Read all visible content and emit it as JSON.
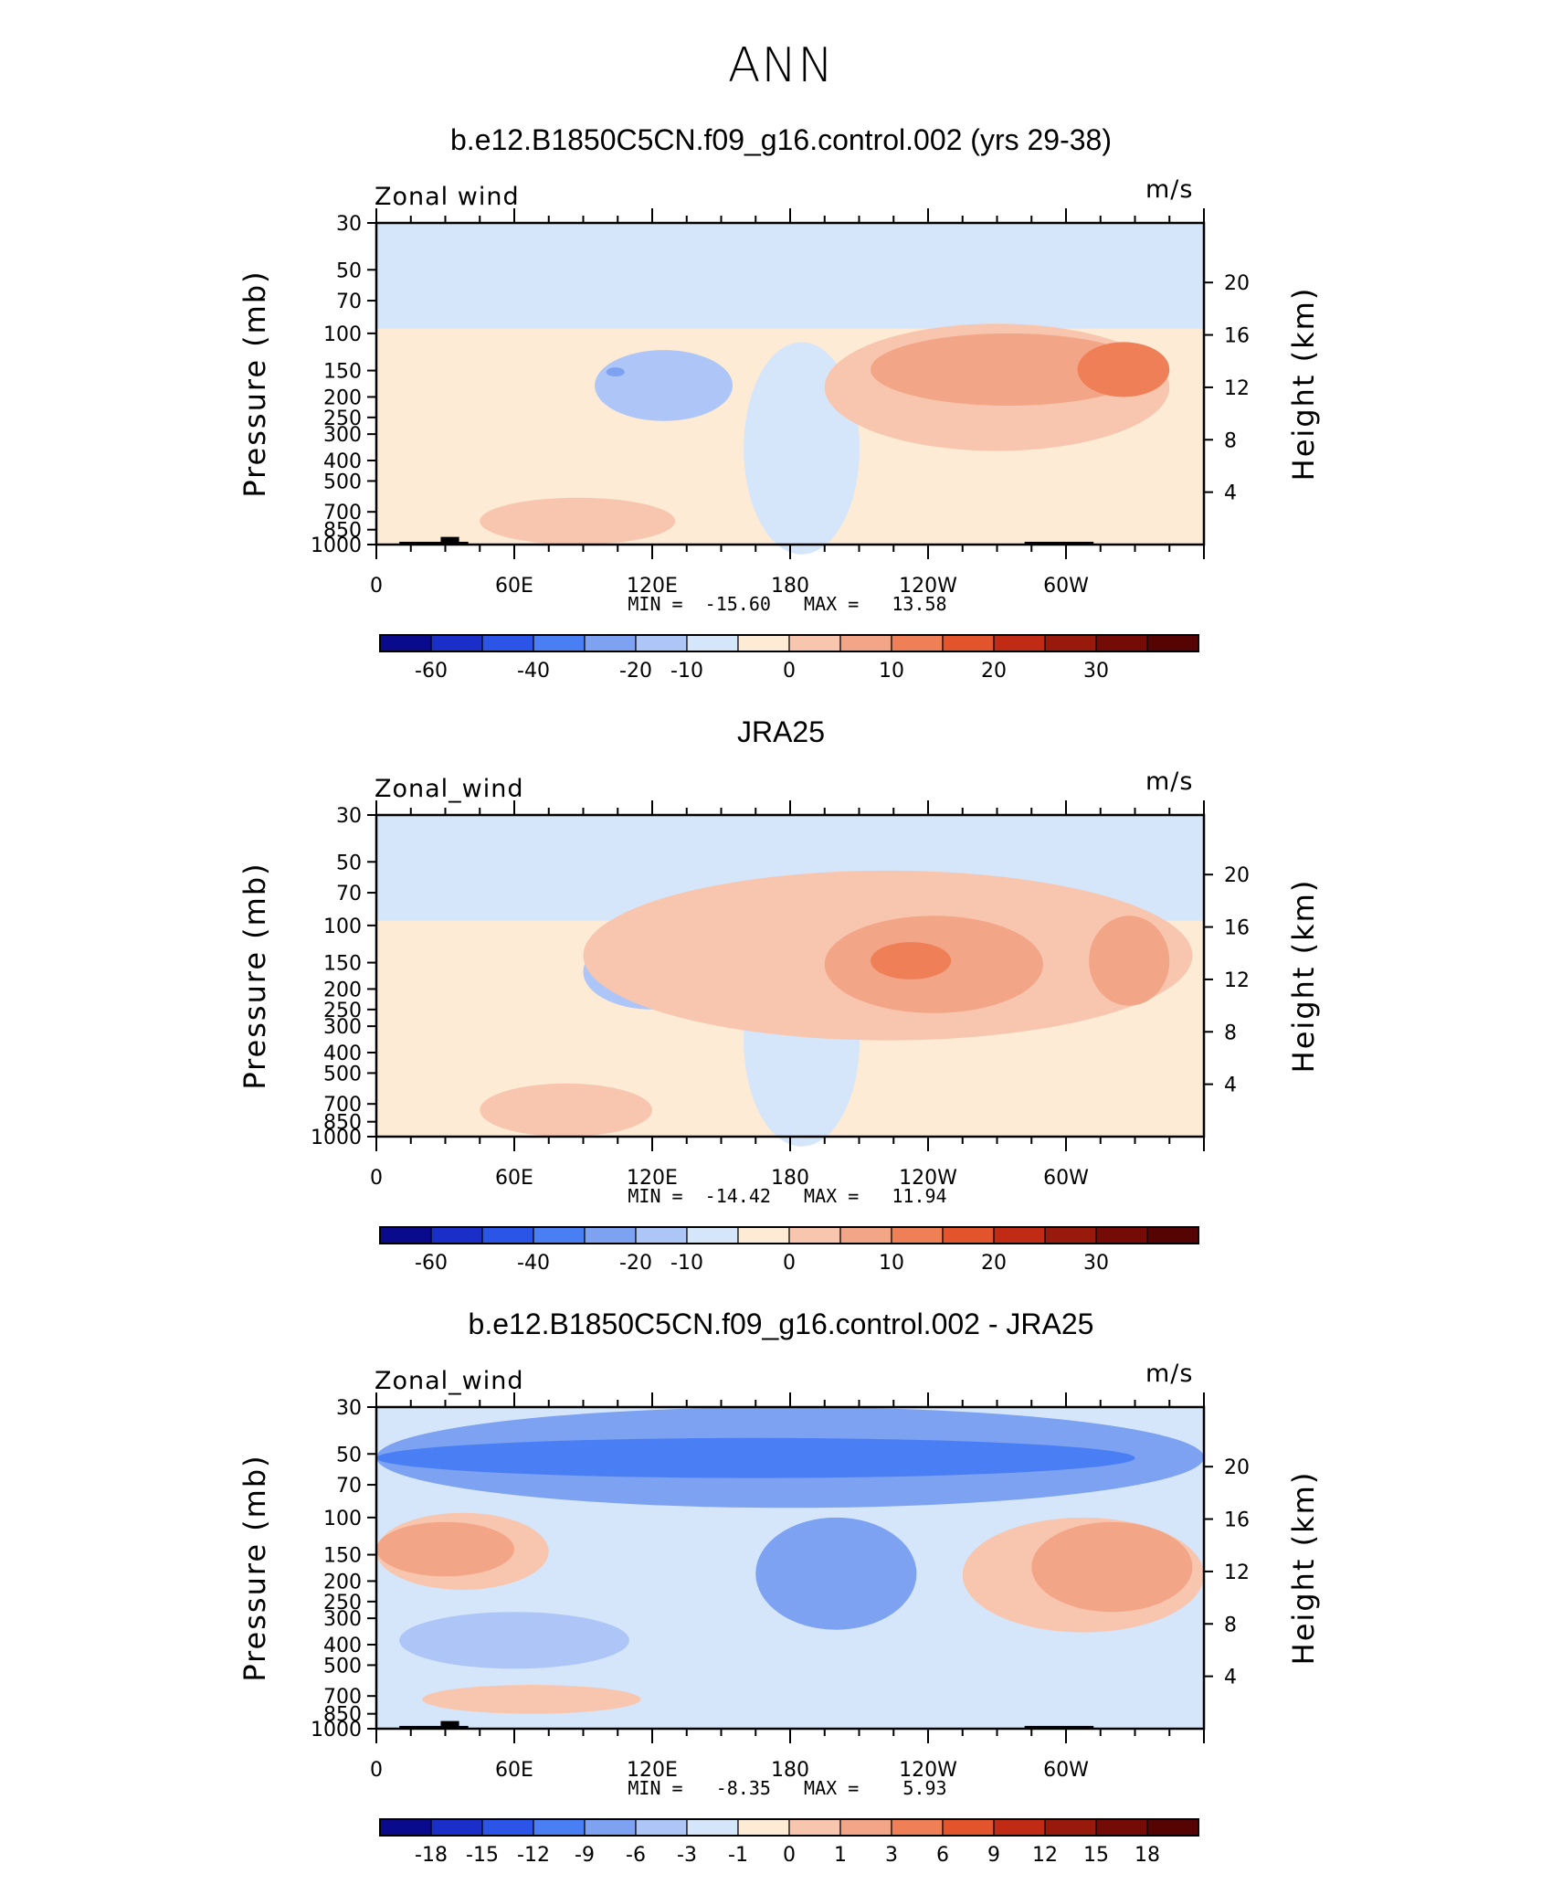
{
  "page_title": "ANN",
  "chart_data": [
    {
      "type": "heatmap",
      "title": "b.e12.B1850C5CN.f09_g16.control.002 (yrs 29-38)",
      "variable_label": "Zonal wind",
      "units": "m/s",
      "stats_text": "MIN =  -15.60   MAX =   13.58",
      "min": -15.6,
      "max": 13.58,
      "xlabel": "",
      "ylabel": "Pressure (mb)",
      "y2label": "Height (km)",
      "x_ticks": [
        "0",
        "60E",
        "120E",
        "180",
        "120W",
        "60W"
      ],
      "y_ticks": [
        "30",
        "50",
        "70",
        "100",
        "150",
        "200",
        "250",
        "300",
        "400",
        "500",
        "700",
        "850",
        "1000"
      ],
      "y2_ticks": [
        "20",
        "16",
        "12",
        "8",
        "4"
      ],
      "colorbar_labels": [
        "-60",
        "-40",
        "-20",
        "-10",
        "0",
        "10",
        "20",
        "30"
      ],
      "colorbar_colors": [
        "#0a0a8c",
        "#1a2fc8",
        "#2a55e6",
        "#4a7ef5",
        "#7ea2f2",
        "#aec6f7",
        "#d5e6fb",
        "#fdebd6",
        "#f8c6ae",
        "#f3a587",
        "#ef7f56",
        "#e3532c",
        "#c12a14",
        "#971a0c",
        "#750b06",
        "#560303"
      ],
      "regions": [
        {
          "level": "-10",
          "color": "#aec6f7",
          "lon": [
            95,
            155
          ],
          "p": [
            120,
            260
          ]
        },
        {
          "level": "-20",
          "color": "#7ea2f2",
          "lon": [
            100,
            108
          ],
          "p": [
            145,
            160
          ]
        },
        {
          "level": "5",
          "color": "#f8c6ae",
          "lon": [
            195,
            345
          ],
          "p": [
            90,
            360
          ]
        },
        {
          "level": "10",
          "color": "#f3a587",
          "lon": [
            215,
            335
          ],
          "p": [
            100,
            220
          ]
        },
        {
          "level": "20",
          "color": "#ef7f56",
          "lon": [
            305,
            345
          ],
          "p": [
            110,
            200
          ]
        },
        {
          "level": "5",
          "color": "#f8c6ae",
          "lon": [
            45,
            130
          ],
          "p": [
            600,
            1000
          ]
        }
      ],
      "topography": true
    },
    {
      "type": "heatmap",
      "title": "JRA25",
      "variable_label": "Zonal_wind",
      "units": "m/s",
      "stats_text": "MIN =  -14.42   MAX =   11.94",
      "min": -14.42,
      "max": 11.94,
      "xlabel": "",
      "ylabel": "Pressure (mb)",
      "y2label": "Height (km)",
      "x_ticks": [
        "0",
        "60E",
        "120E",
        "180",
        "120W",
        "60W"
      ],
      "y_ticks": [
        "30",
        "50",
        "70",
        "100",
        "150",
        "200",
        "250",
        "300",
        "400",
        "500",
        "700",
        "850",
        "1000"
      ],
      "y2_ticks": [
        "20",
        "16",
        "12",
        "8",
        "4"
      ],
      "colorbar_labels": [
        "-60",
        "-40",
        "-20",
        "-10",
        "0",
        "10",
        "20",
        "30"
      ],
      "colorbar_colors": [
        "#0a0a8c",
        "#1a2fc8",
        "#2a55e6",
        "#4a7ef5",
        "#7ea2f2",
        "#aec6f7",
        "#d5e6fb",
        "#fdebd6",
        "#f8c6ae",
        "#f3a587",
        "#ef7f56",
        "#e3532c",
        "#c12a14",
        "#971a0c",
        "#750b06",
        "#560303"
      ],
      "regions": [
        {
          "level": "-10",
          "color": "#aec6f7",
          "lon": [
            90,
            150
          ],
          "p": [
            110,
            250
          ]
        },
        {
          "level": "5",
          "color": "#f8c6ae",
          "lon": [
            90,
            355
          ],
          "p": [
            55,
            350
          ]
        },
        {
          "level": "10",
          "color": "#f3a587",
          "lon": [
            195,
            290
          ],
          "p": [
            90,
            260
          ]
        },
        {
          "level": "20",
          "color": "#ef7f56",
          "lon": [
            215,
            250
          ],
          "p": [
            120,
            180
          ]
        },
        {
          "level": "10",
          "color": "#f3a587",
          "lon": [
            310,
            345
          ],
          "p": [
            90,
            240
          ]
        },
        {
          "level": "5",
          "color": "#f8c6ae",
          "lon": [
            45,
            120
          ],
          "p": [
            560,
            1000
          ]
        }
      ],
      "topography": false
    },
    {
      "type": "heatmap",
      "title": "b.e12.B1850C5CN.f09_g16.control.002 - JRA25",
      "variable_label": "Zonal_wind",
      "units": "m/s",
      "stats_text": "MIN =   -8.35   MAX =    5.93",
      "min": -8.35,
      "max": 5.93,
      "xlabel": "",
      "ylabel": "Pressure (mb)",
      "y2label": "Height (km)",
      "x_ticks": [
        "0",
        "60E",
        "120E",
        "180",
        "120W",
        "60W"
      ],
      "y_ticks": [
        "30",
        "50",
        "70",
        "100",
        "150",
        "200",
        "250",
        "300",
        "400",
        "500",
        "700",
        "850",
        "1000"
      ],
      "y2_ticks": [
        "20",
        "16",
        "12",
        "8",
        "4"
      ],
      "colorbar_labels": [
        "-18",
        "-15",
        "-12",
        "-9",
        "-6",
        "-3",
        "-1",
        "0",
        "1",
        "3",
        "6",
        "9",
        "12",
        "15",
        "18"
      ],
      "colorbar_colors": [
        "#0a0a8c",
        "#1a2fc8",
        "#2a55e6",
        "#4a7ef5",
        "#7ea2f2",
        "#aec6f7",
        "#d5e6fb",
        "#fdebd6",
        "#f8c6ae",
        "#f3a587",
        "#ef7f56",
        "#e3532c",
        "#c12a14",
        "#971a0c",
        "#750b06",
        "#560303"
      ],
      "regions": [
        {
          "level": "-3",
          "color": "#7ea2f2",
          "lon": [
            0,
            360
          ],
          "p": [
            30,
            90
          ]
        },
        {
          "level": "-6",
          "color": "#4a7ef5",
          "lon": [
            0,
            330
          ],
          "p": [
            42,
            65
          ]
        },
        {
          "level": "1",
          "color": "#f8c6ae",
          "lon": [
            0,
            75
          ],
          "p": [
            95,
            220
          ]
        },
        {
          "level": "3",
          "color": "#f3a587",
          "lon": [
            0,
            60
          ],
          "p": [
            105,
            190
          ]
        },
        {
          "level": "-3",
          "color": "#7ea2f2",
          "lon": [
            165,
            235
          ],
          "p": [
            100,
            340
          ]
        },
        {
          "level": "1",
          "color": "#f8c6ae",
          "lon": [
            255,
            360
          ],
          "p": [
            100,
            350
          ]
        },
        {
          "level": "3",
          "color": "#f3a587",
          "lon": [
            285,
            355
          ],
          "p": [
            105,
            280
          ]
        },
        {
          "level": "-1",
          "color": "#aec6f7",
          "lon": [
            10,
            110
          ],
          "p": [
            280,
            520
          ]
        },
        {
          "level": "1",
          "color": "#f8c6ae",
          "lon": [
            20,
            115
          ],
          "p": [
            620,
            850
          ]
        }
      ],
      "topography": true
    }
  ]
}
